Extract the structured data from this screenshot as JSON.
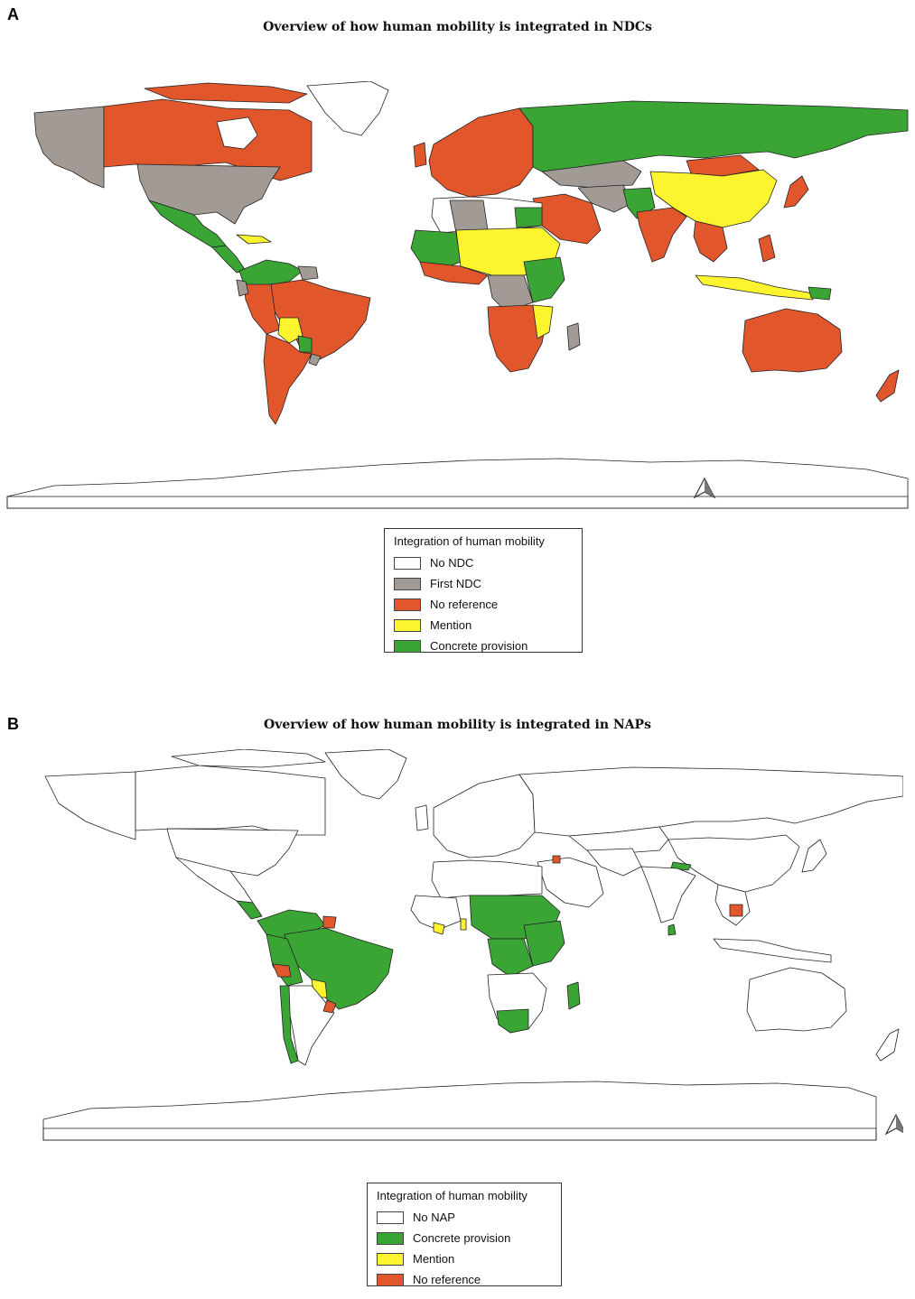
{
  "panelA": {
    "letter": "A",
    "title": "Overview of how human mobility is integrated in NDCs",
    "legend": {
      "title": "Integration of human mobility",
      "items": [
        {
          "label": "No NDC",
          "color": "#ffffff"
        },
        {
          "label": "First NDC",
          "color": "#a29b95"
        },
        {
          "label": "No reference",
          "color": "#e2562b"
        },
        {
          "label": "Mention",
          "color": "#fbf42e"
        },
        {
          "label": "Concrete provision",
          "color": "#3aa535"
        }
      ]
    }
  },
  "panelB": {
    "letter": "B",
    "title": "Overview of how human mobility is integrated in NAPs",
    "legend": {
      "title": "Integration of human mobility",
      "items": [
        {
          "label": "No NAP",
          "color": "#ffffff"
        },
        {
          "label": "Concrete provision",
          "color": "#3aa535"
        },
        {
          "label": "Mention",
          "color": "#fbf42e"
        },
        {
          "label": "No reference",
          "color": "#e2562b"
        }
      ]
    }
  },
  "colors": {
    "none": "#ffffff",
    "first": "#a29b95",
    "noref": "#e2562b",
    "mention": "#fbf42e",
    "concrete": "#3aa535",
    "border": "#222222"
  },
  "north_arrow_icon": "north-arrow-icon"
}
